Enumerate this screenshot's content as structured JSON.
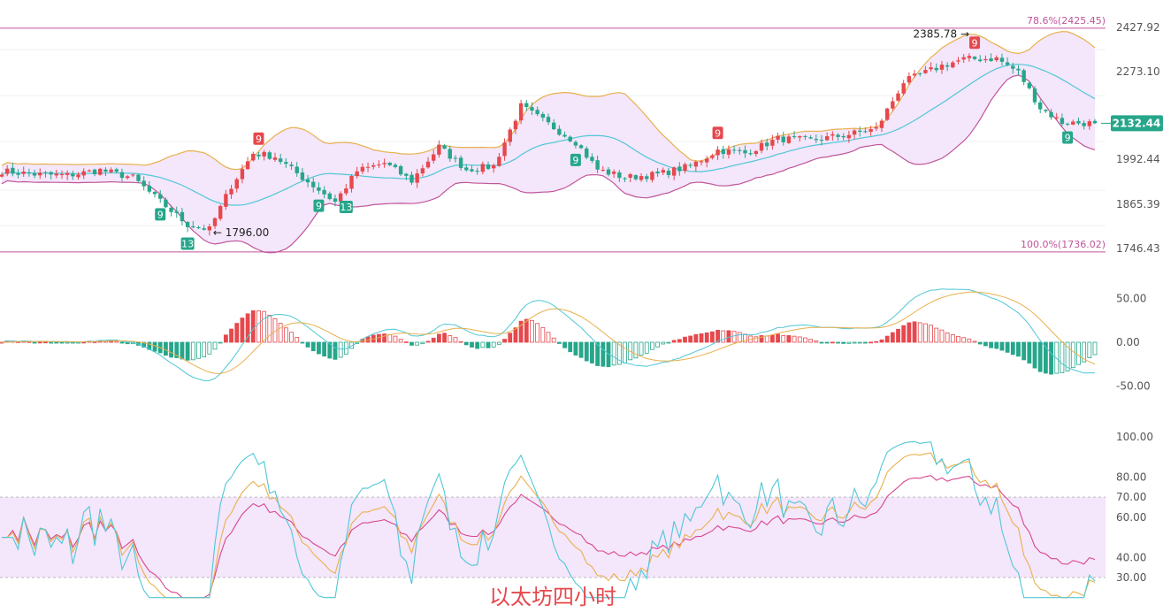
{
  "caption": "以太坊四小时",
  "colors": {
    "up": "#e5484d",
    "down": "#26a68a",
    "fib": "#c0559a",
    "boll_mid": "#4fc7d6",
    "boll_band": "#e8b04d",
    "boll_fill": "#f4e6fb",
    "macd_dif": "#4fc7d6",
    "macd_dea": "#e8b04d",
    "rsi_fast": "#4fc7d6",
    "rsi_mid": "#e8b04d",
    "rsi_slow": "#d8468f",
    "rsi_band": "#f4e6fb",
    "price_tag": "#26a68a",
    "grid": "#f1f1f1",
    "axis_text": "#555555"
  },
  "chart_data": [
    {
      "type": "candlestick",
      "ylim": [
        1746.43,
        2427.92
      ],
      "y_ticks": [
        "2427.92",
        "2273.10",
        "1992.44",
        "1865.39",
        "1746.43"
      ],
      "current_price": "2132.44",
      "fib_levels": [
        {
          "label": "78.6%(2425.45)",
          "value": 2425.45
        },
        {
          "label": "100.0%(1736.02)",
          "value": 1736.02
        }
      ],
      "annotations": [
        {
          "text": "1796.00",
          "x": 38,
          "y": 1796.0,
          "arrow": "left"
        },
        {
          "text": "2385.78",
          "x": 178,
          "y": 2385.78,
          "arrow": "right"
        }
      ],
      "td_markers": [
        {
          "label": "9",
          "x": 29,
          "kind": "down"
        },
        {
          "label": "13",
          "x": 34,
          "kind": "down"
        },
        {
          "label": "9",
          "x": 58,
          "kind": "down"
        },
        {
          "label": "13",
          "x": 63,
          "kind": "down"
        },
        {
          "label": "9",
          "x": 47,
          "kind": "up"
        },
        {
          "label": "9",
          "x": 105,
          "kind": "down"
        },
        {
          "label": "9",
          "x": 131,
          "kind": "up"
        },
        {
          "label": "9",
          "x": 178,
          "kind": "up"
        },
        {
          "label": "9",
          "x": 195,
          "kind": "down"
        }
      ],
      "anchors": [
        [
          0,
          1985
        ],
        [
          6,
          1975
        ],
        [
          12,
          1972
        ],
        [
          18,
          1988
        ],
        [
          24,
          1965
        ],
        [
          28,
          1905
        ],
        [
          34,
          1820
        ],
        [
          38,
          1805
        ],
        [
          42,
          1940
        ],
        [
          46,
          2040
        ],
        [
          50,
          2030
        ],
        [
          55,
          1965
        ],
        [
          61,
          1890
        ],
        [
          65,
          1985
        ],
        [
          70,
          2010
        ],
        [
          75,
          1955
        ],
        [
          80,
          2060
        ],
        [
          85,
          1990
        ],
        [
          90,
          2000
        ],
        [
          95,
          2185
        ],
        [
          100,
          2130
        ],
        [
          105,
          2075
        ],
        [
          109,
          1990
        ],
        [
          114,
          1965
        ],
        [
          120,
          1975
        ],
        [
          126,
          2000
        ],
        [
          131,
          2050
        ],
        [
          136,
          2040
        ],
        [
          142,
          2085
        ],
        [
          148,
          2080
        ],
        [
          154,
          2095
        ],
        [
          160,
          2115
        ],
        [
          165,
          2260
        ],
        [
          172,
          2310
        ],
        [
          176,
          2330
        ],
        [
          182,
          2332
        ],
        [
          186,
          2290
        ],
        [
          190,
          2180
        ],
        [
          194,
          2135
        ],
        [
          200,
          2132
        ]
      ],
      "bollinger": {
        "period": 20,
        "std": 2
      }
    },
    {
      "type": "macd",
      "ylim": [
        -60,
        70
      ],
      "y_ticks": [
        50,
        0,
        -50
      ],
      "y_tick_labels": [
        "50.00",
        "0.00",
        "-50.00"
      ],
      "params": [
        12,
        26,
        9
      ]
    },
    {
      "type": "rsi",
      "ylim": [
        28,
        100
      ],
      "y_ticks": [
        100,
        80,
        70,
        60,
        40,
        30
      ],
      "y_tick_labels": [
        "100.00",
        "80.00",
        "70.00",
        "60.00",
        "40.00",
        "30.00"
      ],
      "band": [
        30,
        70
      ],
      "periods": [
        6,
        12,
        24
      ]
    }
  ]
}
